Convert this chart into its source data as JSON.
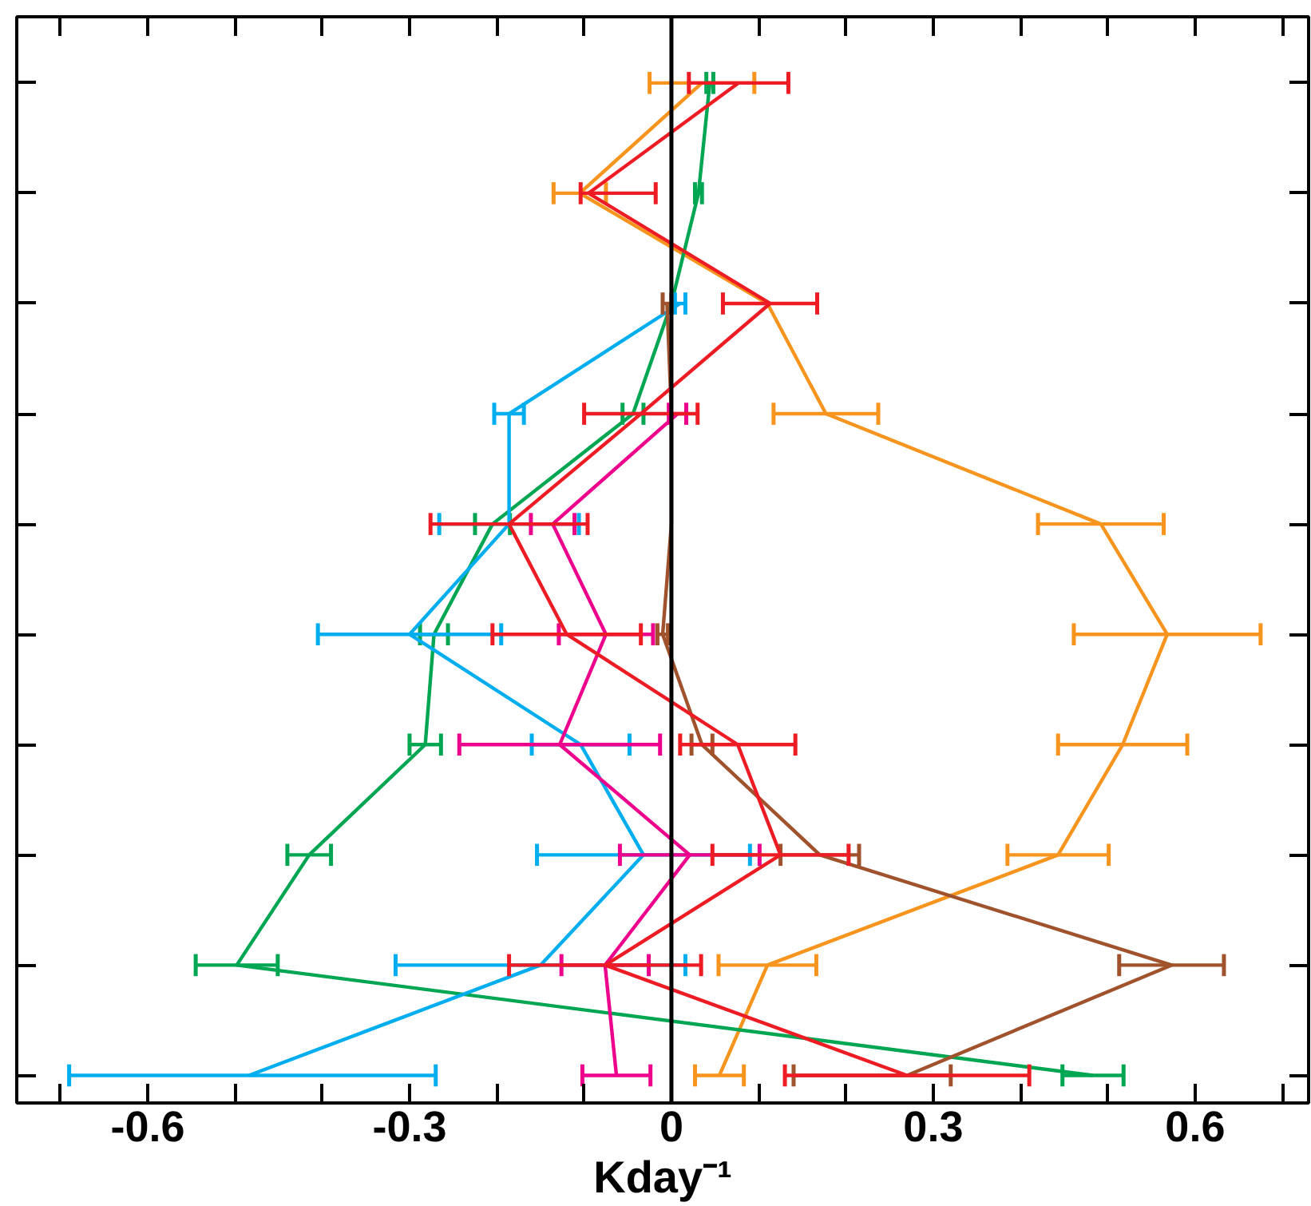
{
  "chart_data": {
    "type": "line",
    "orientation": "horizontal",
    "xlabel": "Kday⁻¹",
    "categories": [
      null,
      null,
      null,
      null,
      null,
      null,
      null,
      null,
      null,
      null
    ],
    "xlim": [
      -0.75,
      0.73
    ],
    "xticks": [
      {
        "value": -0.7,
        "label": null
      },
      -0.6,
      {
        "value": -0.5,
        "label": null
      },
      {
        "value": -0.4,
        "label": null
      },
      -0.3,
      {
        "value": -0.2,
        "label": null
      },
      {
        "value": -0.1,
        "label": null
      },
      0,
      {
        "value": 0.1,
        "label": null
      },
      {
        "value": 0.2,
        "label": null
      },
      0.3,
      {
        "value": 0.4,
        "label": null
      },
      {
        "value": 0.5,
        "label": null
      },
      0.6,
      {
        "value": 0.7,
        "label": null
      }
    ],
    "tick_labels": "x",
    "grid": false,
    "marker": "none",
    "line_style": "solid",
    "ref_lines": [
      {
        "axis": "x",
        "value": 0,
        "color": "#000000"
      }
    ],
    "series": [
      {
        "color": "#f7941d",
        "values": [
          0.035,
          -0.105,
          0.11,
          0.177,
          0.492,
          0.568,
          0.517,
          0.443,
          0.11,
          0.055
        ],
        "errors": [
          0.06,
          0.03,
          null,
          0.06,
          0.072,
          0.107,
          0.074,
          0.058,
          0.056,
          0.028
        ]
      },
      {
        "color": "#00a651",
        "values": [
          0.044,
          0.031,
          0.0,
          -0.044,
          -0.205,
          -0.272,
          -0.282,
          -0.415,
          -0.498,
          0.483
        ],
        "errors": [
          0.004,
          0.004,
          null,
          0.012,
          0.02,
          0.016,
          0.018,
          0.025,
          0.047,
          0.035
        ]
      },
      {
        "color": "#00aeef",
        "values": [
          null,
          null,
          0.01,
          -0.186,
          -0.186,
          -0.3,
          -0.104,
          -0.032,
          -0.15,
          -0.484
        ],
        "errors": [
          null,
          null,
          0.006,
          0.017,
          0.08,
          0.105,
          0.056,
          0.122,
          0.166,
          [
            -0.69,
            -0.27
          ]
        ]
      },
      {
        "color": "#a0522d",
        "values": [
          null,
          null,
          -0.005,
          0.0,
          0.0,
          -0.01,
          0.035,
          0.17,
          0.573,
          0.27
        ],
        "errors": [
          null,
          null,
          0.005,
          null,
          null,
          0.006,
          0.012,
          0.045,
          0.06,
          [
            0.14,
            0.32
          ]
        ]
      },
      {
        "color": "#ec008c",
        "values": [
          null,
          null,
          null,
          0.007,
          -0.136,
          -0.075,
          -0.128,
          0.021,
          -0.076,
          -0.063
        ],
        "errors": [
          null,
          null,
          null,
          0.01,
          0.025,
          0.054,
          0.115,
          0.08,
          0.05,
          0.039
        ]
      },
      {
        "color": "#ed1c24",
        "values": [
          0.077,
          -0.095,
          0.113,
          -0.035,
          -0.186,
          -0.12,
          0.076,
          0.125,
          -0.076,
          0.27
        ],
        "errors": [
          0.057,
          [
            -0.104,
            -0.018
          ],
          0.054,
          0.065,
          0.09,
          0.085,
          0.066,
          0.078,
          0.11,
          0.14
        ]
      }
    ]
  }
}
